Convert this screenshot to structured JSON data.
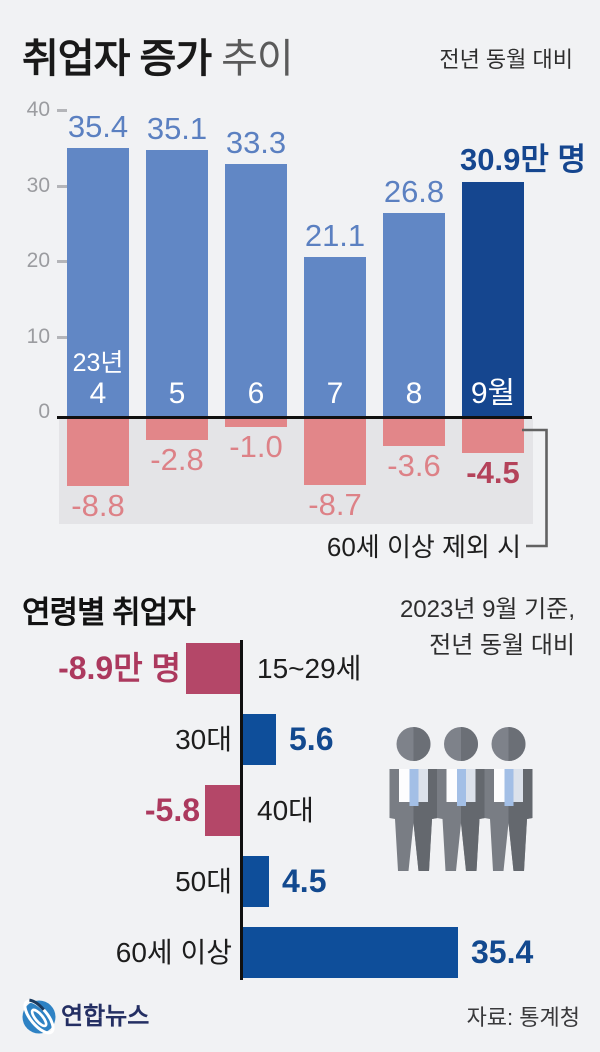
{
  "header": {
    "title_strong": "취업자 증가",
    "title_light": "추이",
    "note": "전년 동월 대비"
  },
  "colors": {
    "background": "#f1f2f4",
    "bar_blue": "#6187c5",
    "bar_blue_label": "#5b80c1",
    "bar_navy": "#15468f",
    "bar_pink": "#e28689",
    "pink_label": "#dd8187",
    "dark_red_label": "#b4425a",
    "crimson": "#b44768",
    "crimson_label": "#ac395e",
    "royal_blue": "#0e4e9a",
    "royal_blue_label": "#12498f",
    "axis_black": "#101010",
    "neg_area_gray": "#e4e4e7",
    "logo_blue": "#2ba3d9",
    "logo_navy": "#242f63"
  },
  "chart_data": [
    {
      "type": "bar",
      "title": "취업자 증가 추이",
      "note": "전년 동월 대비",
      "unit": "만 명",
      "categories": [
        "4",
        "5",
        "6",
        "7",
        "8",
        "9월"
      ],
      "category_prefix": "23년",
      "series": [
        {
          "name": "취업자 증가",
          "values": [
            35.4,
            35.1,
            33.3,
            21.1,
            26.8,
            30.9
          ]
        },
        {
          "name": "60세 이상 제외 시",
          "values": [
            -8.8,
            -2.8,
            -1.0,
            -8.7,
            -3.6,
            -4.5
          ]
        }
      ],
      "value_labels": [
        "35.4",
        "35.1",
        "33.3",
        "21.1",
        "26.8",
        "30.9만 명"
      ],
      "negative_labels": [
        "-8.8",
        "-2.8",
        "-1.0",
        "-8.7",
        "-3.6",
        "-4.5"
      ],
      "highlight_index": 5,
      "yticks": [
        40,
        30,
        20,
        10,
        0
      ],
      "ylim": [
        -12,
        42
      ],
      "grid": false,
      "annotation": "60세 이상 제외 시"
    },
    {
      "type": "bar-horizontal",
      "title": "연령별 취업자",
      "note_lines": [
        "2023년 9월 기준,",
        "전년 동월 대비"
      ],
      "categories": [
        "15~29세",
        "30대",
        "40대",
        "50대",
        "60세 이상"
      ],
      "values": [
        -8.9,
        5.6,
        -5.8,
        4.5,
        35.4
      ],
      "value_labels": [
        "-8.9만 명",
        "5.6",
        "-5.8",
        "4.5",
        "35.4"
      ],
      "xlim": [
        -12,
        40
      ]
    }
  ],
  "footer": {
    "logo_text": "연합뉴스",
    "source": "자료: 통계청"
  }
}
